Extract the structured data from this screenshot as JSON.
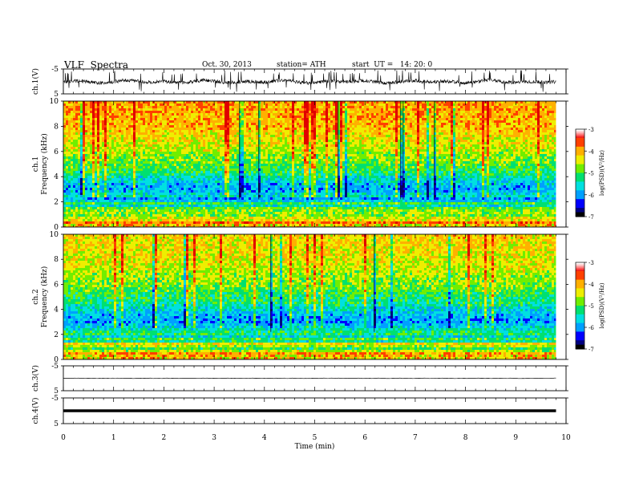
{
  "header": {
    "title": "VLF  Spectra",
    "date": "Oct. 30, 2013",
    "station": "station= ATH",
    "start": "start  UT =   14: 20: 0"
  },
  "chart_data": [
    {
      "type": "line",
      "id": "ch1-waveform",
      "ylabel": "ch.1(V)",
      "ylim": [
        -5,
        5
      ],
      "yticks": [
        "5",
        "-5"
      ],
      "xlim": [
        0,
        10
      ],
      "description_level": -0.1,
      "spike_max": 4.5,
      "spike_min": -4.2
    },
    {
      "type": "heatmap",
      "id": "ch1-spectrogram",
      "ylabel": [
        "ch.1",
        "Frequency  (kHz)"
      ],
      "ylim": [
        0,
        10
      ],
      "yticks": [
        "0",
        "2",
        "4",
        "6",
        "8",
        "10"
      ],
      "xlim": [
        0,
        9.8
      ],
      "colorbar": {
        "label": "log(PSD)(V²/Hz)",
        "range": [
          -7,
          -3
        ],
        "ticks": [
          "-3",
          "-4",
          "-5",
          "-6",
          "-7"
        ]
      },
      "profile_khz_logpsd": [
        [
          0,
          -4.0
        ],
        [
          0.5,
          -4.2
        ],
        [
          1,
          -4.6
        ],
        [
          2,
          -5.0
        ],
        [
          3,
          -5.9
        ],
        [
          3.5,
          -5.8
        ],
        [
          4.5,
          -5.1
        ],
        [
          6,
          -4.6
        ],
        [
          8,
          -4.1
        ],
        [
          10,
          -3.9
        ]
      ]
    },
    {
      "type": "heatmap",
      "id": "ch2-spectrogram",
      "ylabel": [
        "ch.2",
        "Frequency  (kHz)"
      ],
      "ylim": [
        0,
        10
      ],
      "yticks": [
        "0",
        "2",
        "4",
        "6",
        "8",
        "10"
      ],
      "xlim": [
        0,
        9.8
      ],
      "colorbar": {
        "label": "log(PSD)(V²/Hz)",
        "range": [
          -7,
          -3
        ],
        "ticks": [
          "-3",
          "-4",
          "-5",
          "-6",
          "-7"
        ]
      },
      "profile_khz_logpsd": [
        [
          0,
          -4.2
        ],
        [
          0.5,
          -4.5
        ],
        [
          1,
          -4.8
        ],
        [
          2,
          -5.1
        ],
        [
          3,
          -6.0
        ],
        [
          3.5,
          -5.9
        ],
        [
          4.5,
          -5.3
        ],
        [
          6,
          -4.8
        ],
        [
          8,
          -4.4
        ],
        [
          10,
          -4.2
        ]
      ]
    },
    {
      "type": "line",
      "id": "ch3-waveform",
      "ylabel": "ch.3(V)",
      "ylim": [
        -5,
        5
      ],
      "yticks": [
        "5",
        "-5"
      ],
      "xlim": [
        0,
        10
      ],
      "level": 0
    },
    {
      "type": "line",
      "id": "ch4-waveform",
      "ylabel": "ch.4(V)",
      "ylim": [
        -5,
        5
      ],
      "yticks": [
        "5",
        "-5"
      ],
      "xlim": [
        0,
        10
      ],
      "level": 0
    }
  ],
  "x_axis": {
    "label": "Time  (min)",
    "ticks": [
      "0",
      "1",
      "2",
      "3",
      "4",
      "5",
      "6",
      "7",
      "8",
      "9",
      "10"
    ]
  },
  "colors": {
    "axis": "#000000",
    "waveform": "#000000"
  },
  "colormap": [
    "#000080",
    "#0000ff",
    "#00a0ff",
    "#00e0e0",
    "#00e070",
    "#70ee00",
    "#eeee00",
    "#ffb000",
    "#ff4000",
    "#e00000"
  ]
}
